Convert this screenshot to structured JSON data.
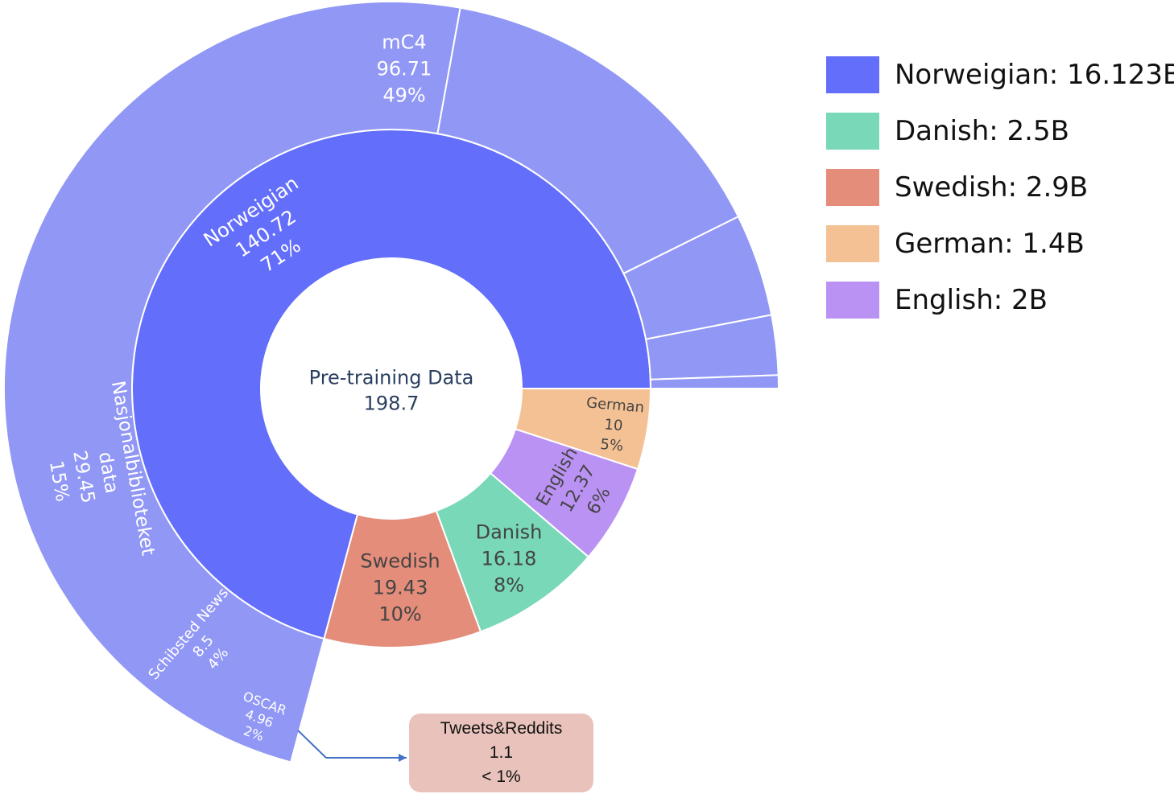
{
  "chart_data": {
    "type": "sunburst",
    "center": {
      "label": "Pre-training Data",
      "value": "198.7"
    },
    "inner_ring": [
      {
        "label": "Norweigian",
        "value": "140.72",
        "percent": "71%",
        "color": "#636efa"
      },
      {
        "label": "German",
        "value": "10",
        "percent": "5%",
        "color": "#f4c194"
      },
      {
        "label": "English",
        "value": "12.37",
        "percent": "6%",
        "color": "#ba92f4"
      },
      {
        "label": "Danish",
        "value": "16.18",
        "percent": "8%",
        "color": "#79d8b8"
      },
      {
        "label": "Swedish",
        "value": "19.43",
        "percent": "10%",
        "color": "#e48d7a"
      }
    ],
    "outer_ring": {
      "parent": "Norweigian",
      "color": "#9197f5",
      "segments": [
        {
          "label": "mC4",
          "value": "96.71",
          "percent": "49%"
        },
        {
          "label": "Nasjonalbiblioteket data",
          "value": "29.45",
          "percent": "15%"
        },
        {
          "label": "Schibsted News",
          "value": "8.5",
          "percent": "4%"
        },
        {
          "label": "OSCAR",
          "value": "4.96",
          "percent": "2%"
        },
        {
          "label": "Tweets&Reddits",
          "value": "1.1",
          "percent": "< 1%"
        }
      ]
    },
    "callout": {
      "label": "Tweets&Reddits",
      "value": "1.1",
      "percent": "< 1%"
    }
  },
  "legend": [
    {
      "label": "Norweigian: 16.123B",
      "color": "#636efa"
    },
    {
      "label": "Danish: 2.5B",
      "color": "#79d8b8"
    },
    {
      "label": "Swedish: 2.9B",
      "color": "#e48d7a"
    },
    {
      "label": "German: 1.4B",
      "color": "#f4c194"
    },
    {
      "label": "English: 2B",
      "color": "#ba92f4"
    }
  ]
}
